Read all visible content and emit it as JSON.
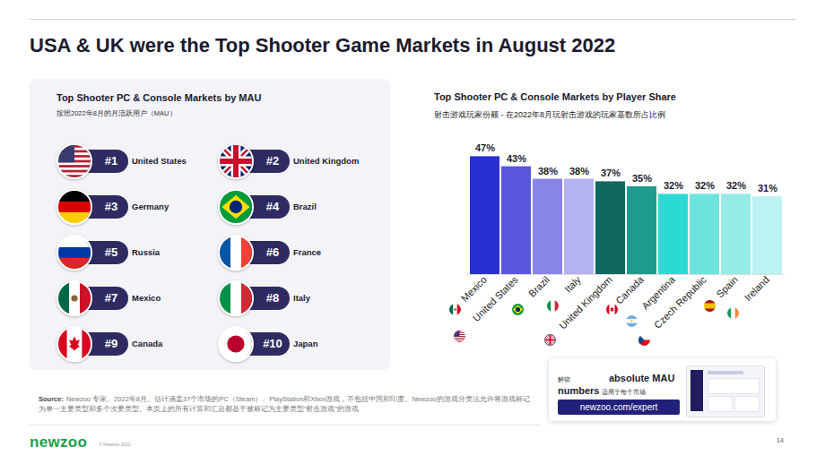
{
  "slide_title": "USA & UK were the Top Shooter Game Markets in August 2022",
  "ranking": {
    "title": "Top Shooter PC & Console Markets by MAU",
    "subtitle": "按照2022年8月的月活跃用户（MAU）",
    "items": [
      {
        "rank": "#1",
        "country": "United States"
      },
      {
        "rank": "#2",
        "country": "United Kingdom"
      },
      {
        "rank": "#3",
        "country": "Germany"
      },
      {
        "rank": "#4",
        "country": "Brazil"
      },
      {
        "rank": "#5",
        "country": "Russia"
      },
      {
        "rank": "#6",
        "country": "France"
      },
      {
        "rank": "#7",
        "country": "Mexico"
      },
      {
        "rank": "#8",
        "country": "Italy"
      },
      {
        "rank": "#9",
        "country": "Canada"
      },
      {
        "rank": "#10",
        "country": "Japan"
      }
    ]
  },
  "chart_data": {
    "type": "bar",
    "title": "Top Shooter PC & Console Markets by Player Share",
    "subtitle": "射击游戏玩家份额 - 在2022年8月玩射击游戏的玩家基数所占比例",
    "categories": [
      "Mexico",
      "United States",
      "Brazil",
      "Italy",
      "United Kingdom",
      "Canada",
      "Argentina",
      "Czech Republic",
      "Spain",
      "Ireland"
    ],
    "values": [
      47,
      43,
      38,
      38,
      37,
      35,
      32,
      32,
      32,
      31
    ],
    "value_labels": [
      "47%",
      "43%",
      "38%",
      "38%",
      "37%",
      "35%",
      "32%",
      "32%",
      "32%",
      "31%"
    ],
    "colors": [
      "#2a2fd2",
      "#5a56de",
      "#8985e6",
      "#b4b2ef",
      "#12685f",
      "#1f9a8e",
      "#2cdad5",
      "#6de3de",
      "#96ebe7",
      "#baf3f1"
    ],
    "ylim": [
      0,
      50
    ],
    "data_labels": true,
    "tick_labels": "x"
  },
  "source": {
    "label": "Source:",
    "text": "Newzoo 专家。2022年8月。估计涵盖37个市场的PC（Steam）、PlayStation和Xbox游戏，不包括中国和印度。Newzoo的游戏分类法允许将游戏标记为单一主要类型和多个次要类型。本页上的所有计算和汇总都基于被标记为主要类型“射击游戏”的游戏"
  },
  "promo": {
    "line1": "解锁",
    "headline": "absolute MAU",
    "line2": "numbers",
    "note": "适用于每个市场",
    "link": "newzoo.com/expert"
  },
  "footer": {
    "logo": "newzoo",
    "copyright": "© Newzoo 2022",
    "page": "14"
  }
}
